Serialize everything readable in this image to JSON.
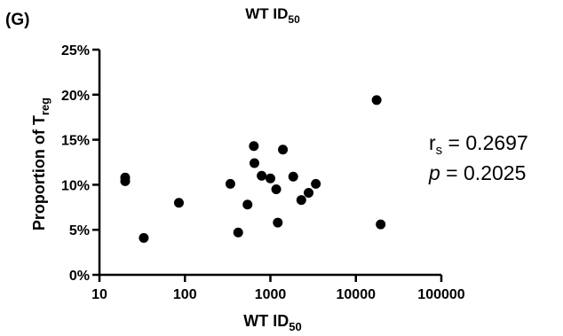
{
  "panel_label": "(G)",
  "chart_data": {
    "type": "scatter",
    "title": "WT ID",
    "title_sub": "50",
    "xlabel": "WT ID",
    "xlabel_sub": "50",
    "ylabel": "Proportion of T",
    "ylabel_sub": "reg",
    "x_scale": "log",
    "xlim": [
      10,
      100000
    ],
    "ylim": [
      0,
      25
    ],
    "x_ticks": [
      {
        "value": 10,
        "label": "10"
      },
      {
        "value": 100,
        "label": "100"
      },
      {
        "value": 1000,
        "label": "1000"
      },
      {
        "value": 10000,
        "label": "10000"
      },
      {
        "value": 100000,
        "label": "100000"
      }
    ],
    "y_ticks": [
      {
        "value": 0,
        "label": "0%"
      },
      {
        "value": 5,
        "label": "5%"
      },
      {
        "value": 10,
        "label": "10%"
      },
      {
        "value": 15,
        "label": "15%"
      },
      {
        "value": 20,
        "label": "20%"
      },
      {
        "value": 25,
        "label": "25%"
      }
    ],
    "grid": false,
    "point_color": "#000000",
    "points": [
      {
        "x": 20,
        "y": 10.8
      },
      {
        "x": 20,
        "y": 10.4
      },
      {
        "x": 33,
        "y": 4.1
      },
      {
        "x": 85,
        "y": 8.0
      },
      {
        "x": 340,
        "y": 10.1
      },
      {
        "x": 420,
        "y": 4.7
      },
      {
        "x": 540,
        "y": 7.8
      },
      {
        "x": 640,
        "y": 14.3
      },
      {
        "x": 650,
        "y": 12.4
      },
      {
        "x": 790,
        "y": 11.0
      },
      {
        "x": 1000,
        "y": 10.7
      },
      {
        "x": 1170,
        "y": 9.5
      },
      {
        "x": 1220,
        "y": 5.8
      },
      {
        "x": 1400,
        "y": 13.9
      },
      {
        "x": 1850,
        "y": 10.9
      },
      {
        "x": 2300,
        "y": 8.3
      },
      {
        "x": 2800,
        "y": 9.1
      },
      {
        "x": 3400,
        "y": 10.1
      },
      {
        "x": 17500,
        "y": 19.4
      },
      {
        "x": 19500,
        "y": 5.6
      }
    ],
    "annotation": {
      "rs_symbol": "r",
      "rs_sub": "s",
      "rs_text": " = 0.2697",
      "p_symbol": "p",
      "p_text": " = 0.2025"
    }
  }
}
